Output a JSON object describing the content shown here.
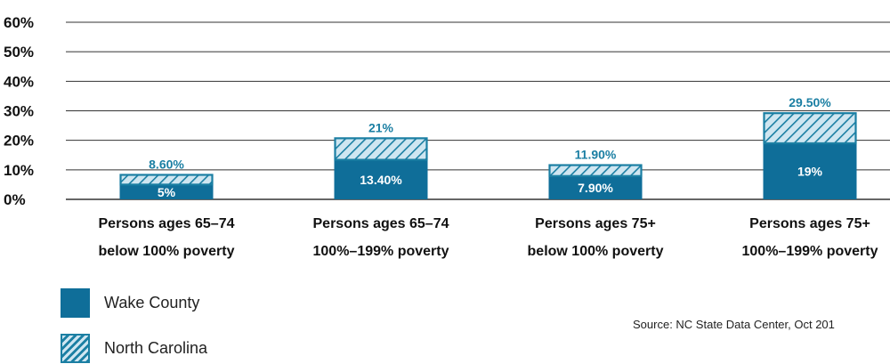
{
  "chart_data": {
    "type": "bar",
    "categories": [
      [
        "Persons ages 65–74",
        "below 100% poverty"
      ],
      [
        "Persons ages 65–74",
        "100%–199% poverty"
      ],
      [
        "Persons ages 75+",
        "below 100% poverty"
      ],
      [
        "Persons ages 75+",
        "100%–199% poverty"
      ]
    ],
    "series": [
      {
        "name": "Wake County",
        "values": [
          5,
          13.4,
          7.9,
          19
        ],
        "labels": [
          "5%",
          "13.40%",
          "7.90%",
          "19%"
        ],
        "color": "#0f6e99",
        "pattern": "solid"
      },
      {
        "name": "North Carolina",
        "values": [
          8.6,
          21,
          11.9,
          29.5
        ],
        "labels": [
          "8.60%",
          "21%",
          "11.90%",
          "29.50%"
        ],
        "color": "#1b7fa3",
        "pattern": "hatched"
      }
    ],
    "stacked": true,
    "yticks": [
      "0%",
      "10%",
      "20%",
      "30%",
      "40%",
      "50%",
      "60%"
    ],
    "ylim": [
      0,
      60
    ],
    "grid": true,
    "legend_position": "bottom-left"
  },
  "source": "Source: NC State Data Center, Oct 201",
  "colors": {
    "accent": "#1b7fa3",
    "dark": "#0f6e99",
    "hatch_bg": "#cfe6f1"
  }
}
